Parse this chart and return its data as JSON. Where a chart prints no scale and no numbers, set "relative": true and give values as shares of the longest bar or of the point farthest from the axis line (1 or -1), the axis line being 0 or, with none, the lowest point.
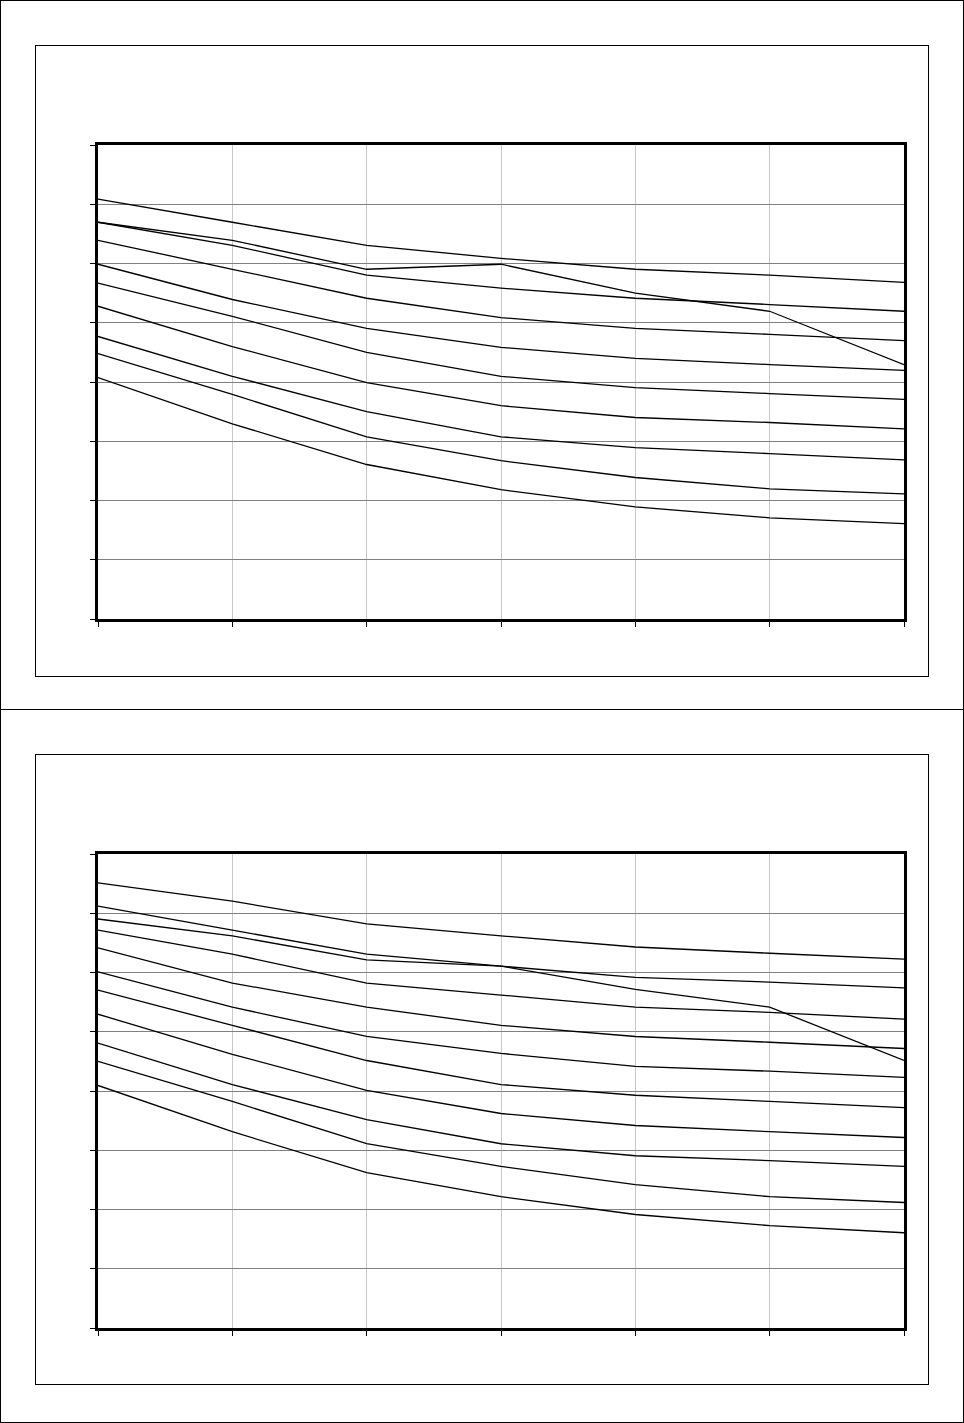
{
  "chart_data": [
    {
      "type": "line",
      "relative": true,
      "grid": true,
      "line_style": "solid",
      "marker": "none",
      "categories": [
        null,
        null,
        null,
        null,
        null,
        null,
        null
      ],
      "series": [
        {
          "color": "#000000",
          "values": [
            1,
            0.945,
            0.89,
            0.859,
            0.833,
            0.819,
            0.802
          ]
        },
        {
          "color": "#000000",
          "values": [
            0.945,
            0.89,
            0.819,
            0.788,
            0.764,
            0.749,
            0.733
          ]
        },
        {
          "color": "#000000",
          "values": [
            0.902,
            0.833,
            0.764,
            0.718,
            0.692,
            0.678,
            0.663
          ]
        },
        {
          "color": "#000000",
          "values": [
            0.845,
            0.761,
            0.692,
            0.647,
            0.621,
            0.606,
            0.592
          ]
        },
        {
          "color": "#000000",
          "values": [
            0.8,
            0.721,
            0.635,
            0.578,
            0.551,
            0.537,
            0.523
          ]
        },
        {
          "color": "#000000",
          "values": [
            0.745,
            0.649,
            0.563,
            0.508,
            0.48,
            0.468,
            0.453
          ]
        },
        {
          "color": "#000000",
          "values": [
            0.673,
            0.578,
            0.494,
            0.434,
            0.408,
            0.394,
            0.379
          ]
        },
        {
          "color": "#000000",
          "values": [
            0.632,
            0.535,
            0.434,
            0.377,
            0.337,
            0.31,
            0.298
          ]
        },
        {
          "color": "#000000",
          "values": [
            0.575,
            0.465,
            0.368,
            0.308,
            0.267,
            0.241,
            0.227
          ]
        },
        {
          "color": "#000000",
          "values": [
            0.945,
            0.902,
            0.833,
            0.845,
            0.776,
            0.733,
            0.606
          ]
        }
      ]
    },
    {
      "type": "line",
      "relative": true,
      "grid": true,
      "line_style": "solid",
      "marker": "none",
      "categories": [
        null,
        null,
        null,
        null,
        null,
        null,
        null
      ],
      "series": [
        {
          "color": "#000000",
          "values": [
            1,
            0.959,
            0.908,
            0.881,
            0.856,
            0.842,
            0.829
          ]
        },
        {
          "color": "#000000",
          "values": [
            0.948,
            0.894,
            0.84,
            0.813,
            0.788,
            0.777,
            0.764
          ]
        },
        {
          "color": "#000000",
          "values": [
            0.894,
            0.84,
            0.775,
            0.748,
            0.721,
            0.709,
            0.694
          ]
        },
        {
          "color": "#000000",
          "values": [
            0.854,
            0.775,
            0.721,
            0.68,
            0.655,
            0.642,
            0.628
          ]
        },
        {
          "color": "#000000",
          "values": [
            0.8,
            0.721,
            0.655,
            0.617,
            0.588,
            0.577,
            0.563
          ]
        },
        {
          "color": "#000000",
          "values": [
            0.759,
            0.68,
            0.601,
            0.547,
            0.523,
            0.509,
            0.495
          ]
        },
        {
          "color": "#000000",
          "values": [
            0.705,
            0.615,
            0.534,
            0.482,
            0.455,
            0.441,
            0.428
          ]
        },
        {
          "color": "#000000",
          "values": [
            0.64,
            0.547,
            0.468,
            0.414,
            0.387,
            0.376,
            0.363
          ]
        },
        {
          "color": "#000000",
          "values": [
            0.599,
            0.509,
            0.414,
            0.363,
            0.322,
            0.295,
            0.282
          ]
        },
        {
          "color": "#000000",
          "values": [
            0.545,
            0.441,
            0.349,
            0.295,
            0.255,
            0.23,
            0.214
          ]
        },
        {
          "color": "#000000",
          "values": [
            0.919,
            0.881,
            0.827,
            0.813,
            0.761,
            0.721,
            0.601
          ]
        }
      ]
    }
  ]
}
